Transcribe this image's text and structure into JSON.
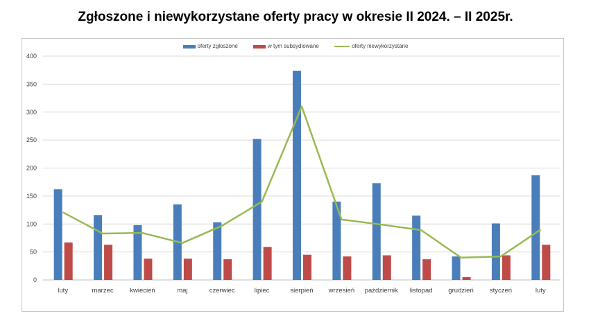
{
  "title": "Zgłoszone i niewykorzystane oferty pracy w okresie II 2024. – II 2025r.",
  "colors": {
    "series1": "#4a7ebb",
    "series2": "#be4b48",
    "series3": "#98b954",
    "grid": "#d9d9d9",
    "axis_text": "#404040"
  },
  "chart_data": {
    "type": "bar",
    "categories": [
      "luty",
      "marzec",
      "kwiecień",
      "maj",
      "czerwiec",
      "lipiec",
      "sierpień",
      "wrzesień",
      "październik",
      "listopad",
      "grudzień",
      "styczeń",
      "luty"
    ],
    "series": [
      {
        "name": "oferty zgłoszone",
        "type": "bar",
        "values": [
          162,
          116,
          98,
          135,
          103,
          252,
          374,
          140,
          173,
          115,
          42,
          101,
          187
        ]
      },
      {
        "name": "w tym subsydiowane",
        "type": "bar",
        "values": [
          67,
          63,
          38,
          38,
          37,
          59,
          45,
          42,
          44,
          37,
          5,
          44,
          63
        ]
      },
      {
        "name": "oferty niewykorzystane",
        "type": "line",
        "values": [
          121,
          83,
          84,
          66,
          97,
          140,
          310,
          108,
          99,
          89,
          40,
          42,
          90
        ]
      }
    ],
    "ylim": [
      0,
      400
    ],
    "yticks": [
      "0",
      "50",
      "100",
      "150",
      "200",
      "250",
      "300",
      "350",
      "400"
    ],
    "grid": true,
    "legend_position": "top"
  }
}
